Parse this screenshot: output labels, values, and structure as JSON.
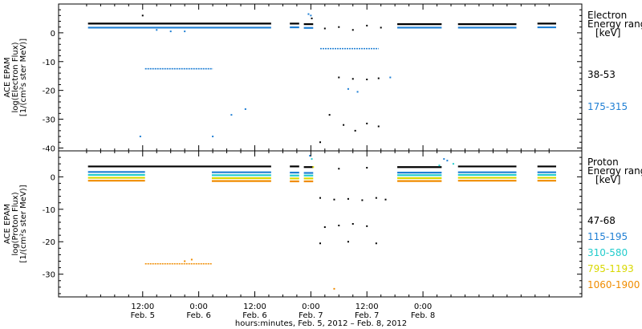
{
  "chart_data": [
    {
      "type": "scatter",
      "panel": "electron",
      "ylabel_lines": [
        "ACE EPAM",
        "log(Electron Flux)",
        "[1/(cm²s ster MeV)]"
      ],
      "ylim": [
        -41,
        10
      ],
      "yticks": [
        0,
        -10,
        -20,
        -30,
        -40
      ],
      "legend_title": [
        "Electron",
        "Energy ranges",
        "[keV]"
      ],
      "series": [
        {
          "name": "38-53",
          "color": "#000000",
          "segments": [
            [
              0.3,
              39.5,
              3.2
            ],
            [
              43.5,
              45.5,
              3.2
            ],
            [
              46.5,
              48.5,
              3.0
            ],
            [
              66.5,
              76,
              3.0
            ],
            [
              79.5,
              92,
              3.0
            ],
            [
              96.5,
              100.5,
              3.2
            ]
          ],
          "points": [
            [
              12,
              6
            ],
            [
              48.2,
              5.0
            ],
            [
              51,
              1.5
            ],
            [
              54,
              2.0
            ],
            [
              57,
              1.0
            ],
            [
              60,
              2.5
            ],
            [
              63,
              1.8
            ],
            [
              54,
              -15.5
            ],
            [
              57,
              -16
            ],
            [
              60,
              -16.2
            ],
            [
              62.5,
              -15.8
            ],
            [
              52,
              -28.5
            ],
            [
              55,
              -32
            ],
            [
              57.5,
              -34
            ],
            [
              60,
              -31.5
            ],
            [
              62.5,
              -32.5
            ],
            [
              50,
              -38
            ]
          ]
        },
        {
          "name": "175-315",
          "color": "#1f7fd4",
          "segments": [
            [
              0.3,
              39.5,
              1.8
            ],
            [
              43.5,
              45.5,
              1.9
            ],
            [
              46.5,
              48.5,
              1.7
            ],
            [
              66.5,
              76,
              1.8
            ],
            [
              79.5,
              92,
              1.8
            ],
            [
              96.5,
              100.5,
              1.9
            ]
          ],
          "levels": [
            [
              12.5,
              27,
              -12.5
            ],
            [
              50,
              62.5,
              -5.5
            ]
          ],
          "points": [
            [
              47.5,
              6.5
            ],
            [
              48,
              6.0
            ],
            [
              15,
              1.0
            ],
            [
              18,
              0.5
            ],
            [
              21,
              0.5
            ],
            [
              56,
              -19.5
            ],
            [
              58,
              -20.5
            ],
            [
              65,
              -15.5
            ],
            [
              34,
              -26.5
            ],
            [
              31,
              -28.5
            ],
            [
              27,
              -36
            ],
            [
              11.5,
              -36
            ]
          ]
        }
      ]
    },
    {
      "type": "scatter",
      "panel": "proton",
      "ylabel_lines": [
        "ACE EPAM",
        "log(Proton Flux)",
        "[1/(cm²s ster MeV)]"
      ],
      "ylim": [
        -37,
        8
      ],
      "yticks": [
        0,
        -10,
        -20,
        -30
      ],
      "legend_title": [
        "Proton",
        "Energy ranges",
        "[keV]"
      ],
      "series": [
        {
          "name": "47-68",
          "color": "#000000",
          "segments": [
            [
              0.3,
              39.5,
              3.2
            ],
            [
              43.5,
              45.5,
              3.2
            ],
            [
              46.5,
              48.5,
              3.0
            ],
            [
              66.5,
              76,
              3.0
            ],
            [
              79.5,
              92,
              3.2
            ],
            [
              96.5,
              100.5,
              3.2
            ]
          ],
          "points": [
            [
              50,
              -6.5
            ],
            [
              53,
              -7
            ],
            [
              56,
              -6.8
            ],
            [
              59,
              -7.2
            ],
            [
              62,
              -6.5
            ],
            [
              64,
              -7
            ],
            [
              51,
              -15.5
            ],
            [
              54,
              -15
            ],
            [
              57,
              -14.5
            ],
            [
              60,
              -15.2
            ],
            [
              50,
              -20.5
            ],
            [
              56,
              -20
            ],
            [
              62,
              -20.5
            ],
            [
              54,
              2.5
            ],
            [
              60,
              2.8
            ]
          ]
        },
        {
          "name": "115-195",
          "color": "#1f7fd4",
          "segments": [
            [
              0.3,
              12.5,
              1.5
            ],
            [
              26.8,
              39.5,
              1.4
            ],
            [
              43.5,
              45.5,
              1.3
            ],
            [
              46.5,
              48.5,
              1.2
            ],
            [
              66.5,
              76,
              1.3
            ],
            [
              79.5,
              92,
              1.4
            ],
            [
              96.5,
              100.5,
              1.4
            ]
          ],
          "points": [
            [
              47.8,
              6.5
            ],
            [
              76.5,
              5.5
            ],
            [
              77.2,
              5.0
            ]
          ]
        },
        {
          "name": "310-580",
          "color": "#22cccc",
          "segments": [
            [
              0.3,
              12.5,
              0.6
            ],
            [
              26.8,
              39.5,
              0.5
            ],
            [
              43.5,
              45.5,
              0.4
            ],
            [
              46.5,
              48.5,
              0.4
            ],
            [
              66.5,
              76,
              0.5
            ],
            [
              79.5,
              92,
              0.6
            ],
            [
              96.5,
              100.5,
              0.6
            ]
          ],
          "points": [
            [
              48.2,
              5.5
            ],
            [
              75.5,
              3.5
            ],
            [
              78.5,
              4.0
            ]
          ]
        },
        {
          "name": "795-1193",
          "color": "#d8d800",
          "segments": [
            [
              0.3,
              12.5,
              -0.3
            ],
            [
              26.8,
              39.5,
              -0.4
            ],
            [
              43.5,
              45.5,
              -0.5
            ],
            [
              46.5,
              48.5,
              -0.5
            ],
            [
              66.5,
              76,
              -0.4
            ],
            [
              79.5,
              92,
              -0.3
            ],
            [
              96.5,
              100.5,
              -0.3
            ]
          ],
          "points": [
            [
              48.5,
              3.0
            ]
          ]
        },
        {
          "name": "1060-1900",
          "color": "#f08c00",
          "segments": [
            [
              0.3,
              12.5,
              -1.2
            ],
            [
              26.8,
              39.5,
              -1.3
            ],
            [
              43.5,
              45.5,
              -1.4
            ],
            [
              46.5,
              48.5,
              -1.4
            ],
            [
              66.5,
              76,
              -1.3
            ],
            [
              79.5,
              92,
              -1.2
            ],
            [
              96.5,
              100.5,
              -1.2
            ]
          ],
          "levels": [
            [
              12.5,
              26.8,
              -26.8
            ]
          ],
          "points": [
            [
              21,
              -26.0
            ],
            [
              22.5,
              -25.5
            ],
            [
              53,
              -34.5
            ]
          ]
        }
      ]
    }
  ],
  "x_axis": {
    "xlim": [
      -6,
      106
    ],
    "ticks": [
      {
        "x": 12,
        "label": "12:00",
        "sub": "Feb. 5"
      },
      {
        "x": 24,
        "label": "0:00",
        "sub": "Feb. 6"
      },
      {
        "x": 36,
        "label": "12:00",
        "sub": "Feb. 6"
      },
      {
        "x": 48,
        "label": "0:00",
        "sub": "Feb. 7"
      },
      {
        "x": 60,
        "label": "12:00",
        "sub": "Feb. 7"
      },
      {
        "x": 72,
        "label": "0:00",
        "sub": "Feb. 8"
      }
    ],
    "xlabel": "hours:minutes, Feb. 5, 2012 – Feb. 8, 2012"
  }
}
